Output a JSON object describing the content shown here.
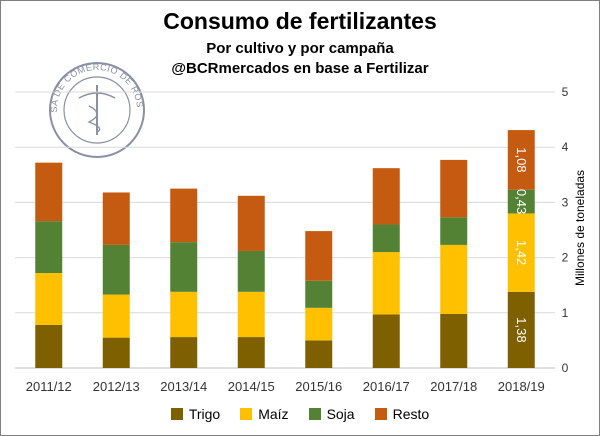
{
  "title": "Consumo de fertilizantes",
  "subtitle_1": "Por cultivo y por campaña",
  "subtitle_2": "@BCRmercados en base a Fertilizar",
  "logo_text": "BOLSA DE COMERCIO DE ROSARIO",
  "colors": {
    "Trigo": "#7f6000",
    "Maíz": "#ffc000",
    "Soja": "#548235",
    "Resto": "#c55a11"
  },
  "chart_data": {
    "type": "bar",
    "stacked": true,
    "categories": [
      "2011/12",
      "2012/13",
      "2013/14",
      "2014/15",
      "2015/16",
      "2016/17",
      "2017/18",
      "2018/19"
    ],
    "series": [
      {
        "name": "Trigo",
        "values": [
          0.78,
          0.55,
          0.56,
          0.56,
          0.5,
          0.97,
          0.98,
          1.38
        ]
      },
      {
        "name": "Maíz",
        "values": [
          0.94,
          0.78,
          0.82,
          0.82,
          0.59,
          1.13,
          1.25,
          1.42
        ]
      },
      {
        "name": "Soja",
        "values": [
          0.94,
          0.9,
          0.9,
          0.74,
          0.49,
          0.5,
          0.5,
          0.43
        ]
      },
      {
        "name": "Resto",
        "values": [
          1.06,
          0.95,
          0.97,
          1.0,
          0.9,
          1.02,
          1.04,
          1.08
        ]
      }
    ],
    "data_labels": {
      "category": "2018/19",
      "values": [
        "1,38",
        "1,42",
        "0,43",
        "1,08"
      ]
    },
    "ylabel": "Millones de toneladas",
    "ylim": [
      0,
      5
    ],
    "yticks": [
      "0",
      "1",
      "2",
      "3",
      "4",
      "5"
    ],
    "y_axis_side": "right",
    "grid": true,
    "legend_position": "bottom"
  }
}
